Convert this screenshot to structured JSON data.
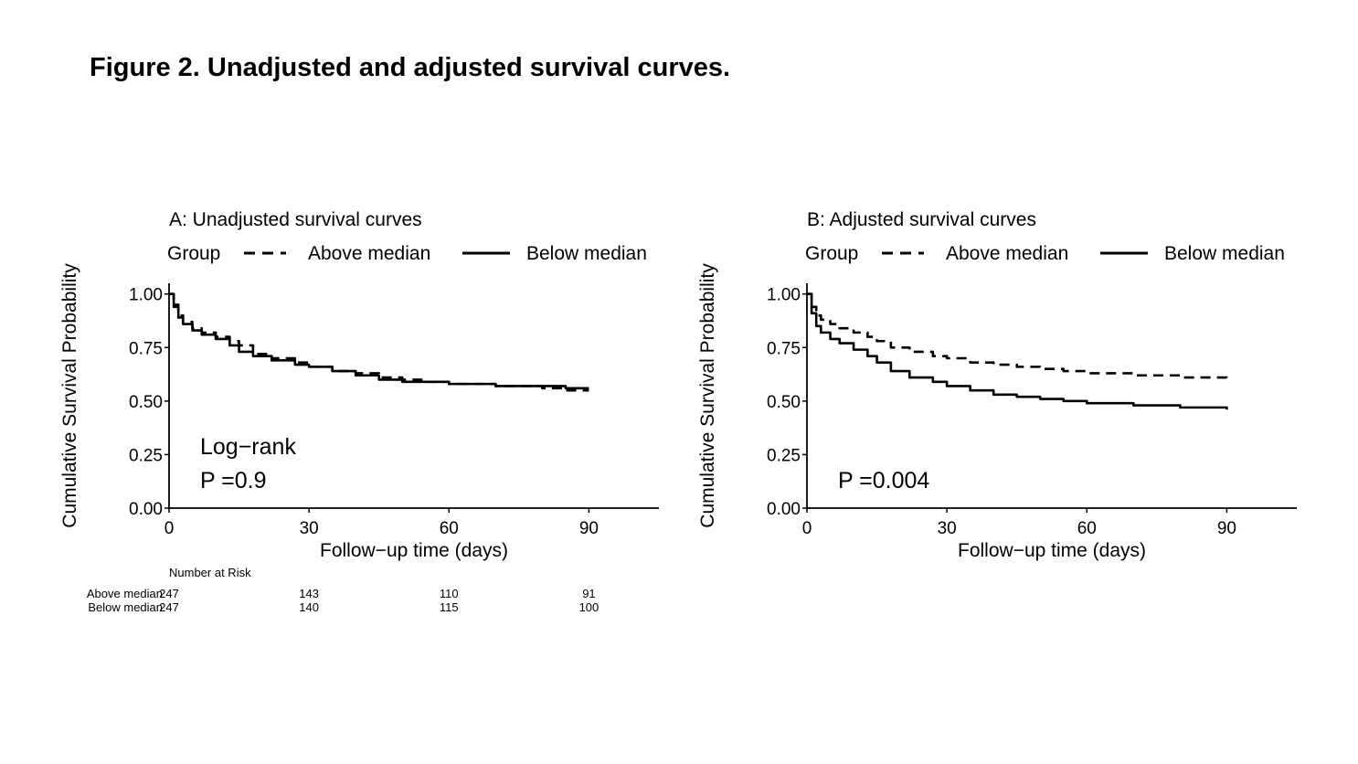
{
  "figure_title": "Figure 2. Unadjusted and adjusted survival curves.",
  "chart_data": [
    {
      "type": "line",
      "title": "A: Unadjusted survival curves",
      "legend": {
        "title": "Group",
        "position": "top",
        "entries": [
          "Above median",
          "Below median"
        ]
      },
      "xlabel": "Follow−up time (days)",
      "ylabel": "Cumulative Survival Probability",
      "xlim": [
        0,
        105
      ],
      "ylim": [
        0,
        1.05
      ],
      "xticks": [
        0,
        30,
        60,
        90
      ],
      "xtick_labels": [
        "0",
        "30",
        "60",
        "90"
      ],
      "yticks": [
        0,
        0.25,
        0.5,
        0.75,
        1.0
      ],
      "ytick_labels": [
        "0.00",
        "0.25",
        "0.50",
        "0.75",
        "1.00"
      ],
      "series": [
        {
          "name": "Above median",
          "style": "dashed",
          "x": [
            0,
            1,
            2,
            3,
            5,
            7,
            10,
            13,
            15,
            18,
            22,
            27,
            30,
            35,
            40,
            45,
            50,
            55,
            60,
            65,
            70,
            75,
            80,
            85,
            90
          ],
          "y": [
            1.0,
            0.95,
            0.9,
            0.87,
            0.84,
            0.82,
            0.8,
            0.78,
            0.76,
            0.72,
            0.7,
            0.68,
            0.66,
            0.64,
            0.63,
            0.61,
            0.6,
            0.59,
            0.58,
            0.58,
            0.57,
            0.57,
            0.56,
            0.55,
            0.55
          ]
        },
        {
          "name": "Below median",
          "style": "solid",
          "x": [
            0,
            1,
            2,
            3,
            5,
            7,
            10,
            13,
            15,
            18,
            22,
            27,
            30,
            35,
            40,
            45,
            50,
            55,
            60,
            65,
            70,
            75,
            80,
            85,
            90
          ],
          "y": [
            1.0,
            0.94,
            0.89,
            0.86,
            0.83,
            0.81,
            0.79,
            0.76,
            0.73,
            0.71,
            0.69,
            0.67,
            0.66,
            0.64,
            0.62,
            0.6,
            0.59,
            0.59,
            0.58,
            0.58,
            0.57,
            0.57,
            0.57,
            0.56,
            0.56
          ]
        }
      ],
      "annotations": [
        "Log−rank",
        "P =0.9"
      ]
    },
    {
      "type": "line",
      "title": "B: Adjusted survival curves",
      "legend": {
        "title": "Group",
        "position": "top",
        "entries": [
          "Above median",
          "Below median"
        ]
      },
      "xlabel": "Follow−up time (days)",
      "ylabel": "Cumulative Survival Probability",
      "xlim": [
        0,
        105
      ],
      "ylim": [
        0,
        1.05
      ],
      "xticks": [
        0,
        30,
        60,
        90
      ],
      "xtick_labels": [
        "0",
        "30",
        "60",
        "90"
      ],
      "yticks": [
        0,
        0.25,
        0.5,
        0.75,
        1.0
      ],
      "ytick_labels": [
        "0.00",
        "0.25",
        "0.50",
        "0.75",
        "1.00"
      ],
      "series": [
        {
          "name": "Above median",
          "style": "dashed",
          "x": [
            0,
            1,
            2,
            3,
            5,
            7,
            10,
            13,
            15,
            18,
            22,
            27,
            30,
            35,
            40,
            45,
            50,
            55,
            60,
            65,
            70,
            75,
            80,
            85,
            90
          ],
          "y": [
            1.0,
            0.94,
            0.9,
            0.88,
            0.86,
            0.84,
            0.82,
            0.8,
            0.78,
            0.75,
            0.73,
            0.71,
            0.7,
            0.68,
            0.67,
            0.66,
            0.65,
            0.64,
            0.63,
            0.63,
            0.62,
            0.62,
            0.61,
            0.61,
            0.6
          ]
        },
        {
          "name": "Below median",
          "style": "solid",
          "x": [
            0,
            1,
            2,
            3,
            5,
            7,
            10,
            13,
            15,
            18,
            22,
            27,
            30,
            35,
            40,
            45,
            50,
            55,
            60,
            65,
            70,
            75,
            80,
            85,
            90
          ],
          "y": [
            1.0,
            0.91,
            0.85,
            0.82,
            0.79,
            0.77,
            0.74,
            0.71,
            0.68,
            0.64,
            0.61,
            0.59,
            0.57,
            0.55,
            0.53,
            0.52,
            0.51,
            0.5,
            0.49,
            0.49,
            0.48,
            0.48,
            0.47,
            0.47,
            0.46
          ]
        }
      ],
      "annotations": [
        "P =0.004"
      ]
    }
  ],
  "risk_table": {
    "header": "Number at Risk",
    "time_points": [
      0,
      30,
      60,
      90
    ],
    "rows": [
      {
        "label": "Above median",
        "values": [
          "247",
          "143",
          "110",
          "91"
        ]
      },
      {
        "label": "Below median",
        "values": [
          "247",
          "140",
          "115",
          "100"
        ]
      }
    ]
  }
}
